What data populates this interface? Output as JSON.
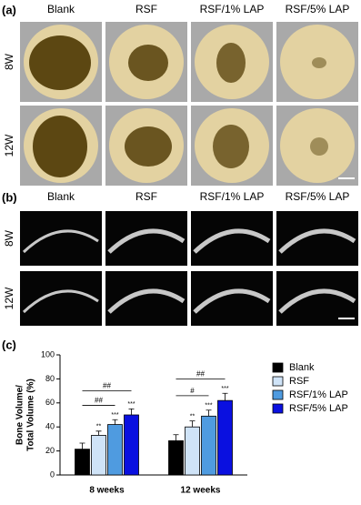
{
  "panels": [
    {
      "label": "(a)",
      "columns": [
        "Blank",
        "RSF",
        "RSF/1% LAP",
        "RSF/5% LAP"
      ],
      "rows": [
        "8W",
        "12W"
      ]
    },
    {
      "label": "(b)",
      "columns": [
        "Blank",
        "RSF",
        "RSF/1% LAP",
        "RSF/5% LAP"
      ],
      "rows": [
        "8W",
        "12W"
      ]
    }
  ],
  "chart_data": {
    "type": "bar",
    "label": "(c)",
    "y_label": [
      "Bone Volume/",
      "Total Volume (%)"
    ],
    "categories": [
      "8 weeks",
      "12 weeks"
    ],
    "series": [
      {
        "name": "Blank",
        "color": "#000000",
        "values": [
          21.5,
          28.5
        ],
        "errors": [
          5,
          5
        ]
      },
      {
        "name": "RSF",
        "color": "#cfe3f7",
        "values": [
          33,
          40
        ],
        "errors": [
          3.5,
          5
        ],
        "significance": [
          "**",
          "**"
        ]
      },
      {
        "name": "RSF/1% LAP",
        "color": "#4f9be0",
        "values": [
          42,
          49
        ],
        "errors": [
          4,
          5
        ],
        "significance": [
          "***",
          "***"
        ]
      },
      {
        "name": "RSF/5% LAP",
        "color": "#0a10e0",
        "values": [
          50,
          62
        ],
        "errors": [
          5,
          6
        ],
        "significance": [
          "***",
          "***"
        ]
      }
    ],
    "brackets": [
      [
        {
          "label": "##",
          "from": 0,
          "to": 2
        },
        {
          "label": "##",
          "from": 0,
          "to": 3
        }
      ],
      [
        {
          "label": "#",
          "from": 0,
          "to": 2
        },
        {
          "label": "##",
          "from": 0,
          "to": 3
        }
      ]
    ],
    "ylim": [
      0,
      100
    ],
    "yticks": [
      0,
      20,
      40,
      60,
      80,
      100
    ]
  }
}
